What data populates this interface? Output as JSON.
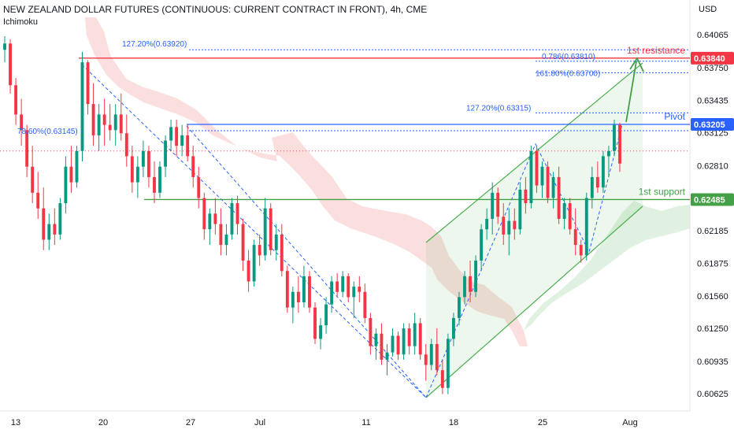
{
  "header": {
    "title": "NEW ZEALAND DOLLAR FUTURES (CONTINUOUS: CURRENT CONTRACT IN FRONT), 4h, CME",
    "indicator": "Ichimoku",
    "currency": "USD"
  },
  "colors": {
    "up": "#089981",
    "down": "#f23645",
    "resistance": "#f23645",
    "pivot": "#2962ff",
    "support": "#43a047",
    "fib": "#2962ff",
    "channel": "#4caf50",
    "cloud_bear": "#f8c5c5",
    "cloud_bull": "#cce8cd"
  },
  "chart_data": {
    "type": "candlestick",
    "y_axis_ticks": [
      "0.64065",
      "0.63750",
      "0.63435",
      "0.63125",
      "0.62810",
      "0.62185",
      "0.61875",
      "0.61560",
      "0.61250",
      "0.60935",
      "0.60625"
    ],
    "x_axis_ticks": [
      "13",
      "20",
      "27",
      "Jul",
      "11",
      "18",
      "25",
      "Aug"
    ],
    "price_tags": [
      {
        "text": "0.63840",
        "kind": "resistance"
      },
      {
        "text": "0.63205",
        "kind": "pivot"
      },
      {
        "text": "0.62485",
        "kind": "support"
      }
    ],
    "levels": [
      {
        "label": "1st resistance",
        "price": 0.6384,
        "kind": "resistance"
      },
      {
        "label": "Pivot",
        "price": 0.63205,
        "kind": "pivot"
      },
      {
        "label": "1st support",
        "price": 0.62485,
        "kind": "support"
      }
    ],
    "fib_labels": [
      {
        "text": "127.20%(0.63920)",
        "price": 0.6392
      },
      {
        "text": "0.786(0.63810)",
        "price": 0.6381
      },
      {
        "text": "161.80%(0.63700)",
        "price": 0.637
      },
      {
        "text": "127.20%(0.63315)",
        "price": 0.63315
      },
      {
        "text": "78.60%(0.63145)",
        "price": 0.63145
      }
    ],
    "candles": [
      [
        0.6392,
        0.6405,
        0.638,
        0.6398
      ],
      [
        0.6398,
        0.6402,
        0.635,
        0.6358
      ],
      [
        0.6358,
        0.6365,
        0.632,
        0.633
      ],
      [
        0.633,
        0.6345,
        0.63,
        0.6315
      ],
      [
        0.6315,
        0.632,
        0.627,
        0.628
      ],
      [
        0.628,
        0.63,
        0.6245,
        0.6255
      ],
      [
        0.6255,
        0.6275,
        0.623,
        0.624
      ],
      [
        0.624,
        0.626,
        0.62,
        0.621
      ],
      [
        0.621,
        0.6235,
        0.62,
        0.6225
      ],
      [
        0.6225,
        0.624,
        0.6205,
        0.6215
      ],
      [
        0.6215,
        0.625,
        0.621,
        0.6245
      ],
      [
        0.6245,
        0.629,
        0.6235,
        0.628
      ],
      [
        0.628,
        0.63,
        0.6255,
        0.6265
      ],
      [
        0.6265,
        0.63,
        0.626,
        0.6295
      ],
      [
        0.6295,
        0.639,
        0.6285,
        0.638
      ],
      [
        0.638,
        0.6382,
        0.633,
        0.634
      ],
      [
        0.634,
        0.636,
        0.63,
        0.631
      ],
      [
        0.631,
        0.634,
        0.6295,
        0.633
      ],
      [
        0.633,
        0.6345,
        0.63,
        0.632
      ],
      [
        0.632,
        0.634,
        0.6305,
        0.6315
      ],
      [
        0.6315,
        0.634,
        0.63,
        0.633
      ],
      [
        0.633,
        0.635,
        0.6305,
        0.6312
      ],
      [
        0.6312,
        0.633,
        0.628,
        0.629
      ],
      [
        0.629,
        0.63,
        0.6255,
        0.6265
      ],
      [
        0.6265,
        0.629,
        0.625,
        0.628
      ],
      [
        0.628,
        0.6305,
        0.627,
        0.6295
      ],
      [
        0.6295,
        0.63,
        0.626,
        0.627
      ],
      [
        0.627,
        0.6285,
        0.6245,
        0.6255
      ],
      [
        0.6255,
        0.6285,
        0.625,
        0.628
      ],
      [
        0.628,
        0.631,
        0.627,
        0.6305
      ],
      [
        0.6305,
        0.6325,
        0.6295,
        0.6318
      ],
      [
        0.6318,
        0.6325,
        0.629,
        0.63
      ],
      [
        0.63,
        0.632,
        0.629,
        0.631
      ],
      [
        0.631,
        0.632,
        0.6285,
        0.629
      ],
      [
        0.629,
        0.63,
        0.626,
        0.627
      ],
      [
        0.627,
        0.628,
        0.624,
        0.625
      ],
      [
        0.625,
        0.6255,
        0.621,
        0.622
      ],
      [
        0.622,
        0.624,
        0.6205,
        0.6235
      ],
      [
        0.6235,
        0.625,
        0.6215,
        0.6225
      ],
      [
        0.6225,
        0.624,
        0.6195,
        0.6205
      ],
      [
        0.6205,
        0.6225,
        0.6195,
        0.6215
      ],
      [
        0.6215,
        0.625,
        0.621,
        0.6245
      ],
      [
        0.6245,
        0.6252,
        0.6215,
        0.6225
      ],
      [
        0.6225,
        0.623,
        0.618,
        0.619
      ],
      [
        0.619,
        0.62,
        0.616,
        0.617
      ],
      [
        0.617,
        0.621,
        0.6165,
        0.6205
      ],
      [
        0.6205,
        0.6215,
        0.6185,
        0.6195
      ],
      [
        0.6195,
        0.625,
        0.619,
        0.624
      ],
      [
        0.624,
        0.6245,
        0.6195,
        0.62
      ],
      [
        0.62,
        0.6225,
        0.619,
        0.6215
      ],
      [
        0.6215,
        0.6225,
        0.6175,
        0.618
      ],
      [
        0.618,
        0.6185,
        0.614,
        0.6145
      ],
      [
        0.6145,
        0.6165,
        0.613,
        0.616
      ],
      [
        0.616,
        0.6175,
        0.614,
        0.615
      ],
      [
        0.615,
        0.6185,
        0.6145,
        0.6175
      ],
      [
        0.6175,
        0.618,
        0.614,
        0.6145
      ],
      [
        0.6145,
        0.615,
        0.611,
        0.6115
      ],
      [
        0.6115,
        0.6135,
        0.6105,
        0.6128
      ],
      [
        0.6128,
        0.6155,
        0.612,
        0.6148
      ],
      [
        0.6148,
        0.6175,
        0.614,
        0.617
      ],
      [
        0.617,
        0.6178,
        0.6155,
        0.616
      ],
      [
        0.616,
        0.618,
        0.6155,
        0.6175
      ],
      [
        0.6175,
        0.6178,
        0.615,
        0.6155
      ],
      [
        0.6155,
        0.617,
        0.6135,
        0.6165
      ],
      [
        0.6165,
        0.6175,
        0.615,
        0.616
      ],
      [
        0.616,
        0.6168,
        0.613,
        0.6135
      ],
      [
        0.6135,
        0.614,
        0.61,
        0.6108
      ],
      [
        0.6108,
        0.6125,
        0.6095,
        0.612
      ],
      [
        0.612,
        0.613,
        0.609,
        0.6095
      ],
      [
        0.6095,
        0.611,
        0.608,
        0.6102
      ],
      [
        0.6102,
        0.6125,
        0.6098,
        0.6118
      ],
      [
        0.6118,
        0.6122,
        0.6095,
        0.61
      ],
      [
        0.61,
        0.613,
        0.6095,
        0.6125
      ],
      [
        0.6125,
        0.613,
        0.61,
        0.6108
      ],
      [
        0.6108,
        0.614,
        0.61,
        0.613
      ],
      [
        0.613,
        0.6135,
        0.6095,
        0.61
      ],
      [
        0.61,
        0.611,
        0.6075,
        0.609
      ],
      [
        0.609,
        0.6115,
        0.6085,
        0.611
      ],
      [
        0.611,
        0.6125,
        0.608,
        0.6085
      ],
      [
        0.6085,
        0.6095,
        0.6062,
        0.6068
      ],
      [
        0.6068,
        0.612,
        0.6062,
        0.6115
      ],
      [
        0.6115,
        0.614,
        0.6108,
        0.6135
      ],
      [
        0.6135,
        0.616,
        0.6128,
        0.6155
      ],
      [
        0.6155,
        0.618,
        0.6148,
        0.6175
      ],
      [
        0.6175,
        0.619,
        0.615,
        0.616
      ],
      [
        0.616,
        0.6195,
        0.6155,
        0.619
      ],
      [
        0.619,
        0.6225,
        0.618,
        0.622
      ],
      [
        0.622,
        0.624,
        0.621,
        0.623
      ],
      [
        0.623,
        0.6265,
        0.6215,
        0.6255
      ],
      [
        0.6255,
        0.626,
        0.6225,
        0.6232
      ],
      [
        0.6232,
        0.6245,
        0.6205,
        0.6215
      ],
      [
        0.6215,
        0.624,
        0.6195,
        0.6228
      ],
      [
        0.6228,
        0.624,
        0.621,
        0.622
      ],
      [
        0.622,
        0.6265,
        0.6215,
        0.6258
      ],
      [
        0.6258,
        0.627,
        0.6235,
        0.6245
      ],
      [
        0.6245,
        0.63,
        0.624,
        0.6295
      ],
      [
        0.6295,
        0.63,
        0.6255,
        0.6262
      ],
      [
        0.6262,
        0.6285,
        0.625,
        0.628
      ],
      [
        0.628,
        0.6285,
        0.6245,
        0.625
      ],
      [
        0.625,
        0.6275,
        0.624,
        0.627
      ],
      [
        0.627,
        0.628,
        0.6225,
        0.623
      ],
      [
        0.623,
        0.625,
        0.622,
        0.6245
      ],
      [
        0.6245,
        0.625,
        0.6215,
        0.622
      ],
      [
        0.622,
        0.624,
        0.6195,
        0.6205
      ],
      [
        0.6205,
        0.621,
        0.6188,
        0.6195
      ],
      [
        0.6195,
        0.6255,
        0.619,
        0.625
      ],
      [
        0.625,
        0.628,
        0.624,
        0.627
      ],
      [
        0.627,
        0.6285,
        0.6255,
        0.626
      ],
      [
        0.626,
        0.6295,
        0.6255,
        0.629
      ],
      [
        0.629,
        0.63,
        0.627,
        0.6295
      ],
      [
        0.6295,
        0.6325,
        0.629,
        0.632
      ],
      [
        0.632,
        0.6322,
        0.6275,
        0.6283
      ]
    ]
  }
}
